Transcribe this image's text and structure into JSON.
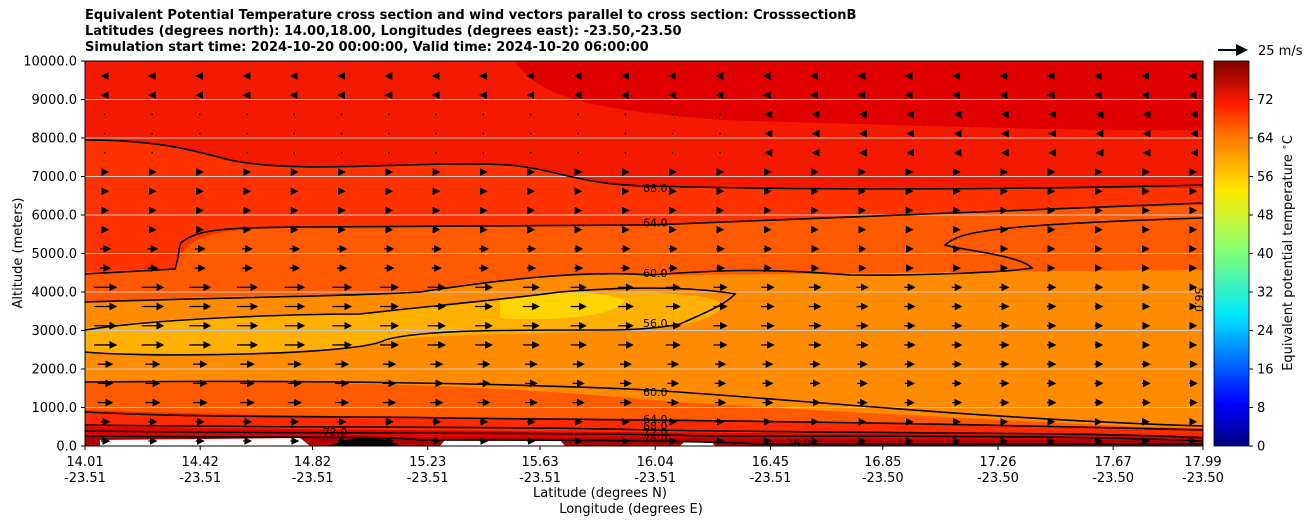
{
  "chart_data": {
    "type": "contour",
    "title_lines": [
      "Equivalent Potential Temperature cross section and wind vectors parallel to cross section: CrosssectionB",
      "Latitudes (degrees north): 14.00,18.00, Longitudes (degrees east): -23.50,-23.50",
      "Simulation start time: 2024-10-20 00:00:00, Valid time: 2024-10-20 06:00:00"
    ],
    "xlabel_lat": "Latitude (degrees N)",
    "xlabel_lon": "Longitude (degrees E)",
    "ylabel": "Altitude (meters)",
    "x_ticks_lat": [
      "14.01",
      "14.42",
      "14.82",
      "15.23",
      "15.63",
      "16.04",
      "16.45",
      "16.85",
      "17.26",
      "17.67",
      "17.99"
    ],
    "x_ticks_lon": [
      "-23.51",
      "-23.51",
      "-23.51",
      "-23.51",
      "-23.51",
      "-23.51",
      "-23.51",
      "-23.50",
      "-23.50",
      "-23.50",
      "-23.50"
    ],
    "y_ticks": [
      "0.0",
      "1000.0",
      "2000.0",
      "3000.0",
      "4000.0",
      "5000.0",
      "6000.0",
      "7000.0",
      "8000.0",
      "9000.0",
      "10000.0"
    ],
    "ylim": [
      0,
      10000
    ],
    "grid": "horizontal",
    "colorbar": {
      "label": "Equivalent potential temperature $^\\circ$C",
      "ticks": [
        "0",
        "8",
        "16",
        "24",
        "32",
        "40",
        "48",
        "56",
        "64",
        "72"
      ],
      "range": [
        0,
        80
      ],
      "colormap": "jet"
    },
    "wind_key": "25 m/s",
    "contour_labels": [
      {
        "text": "68.0",
        "lat": 16.04,
        "alt": 6700
      },
      {
        "text": "64.0",
        "lat": 16.04,
        "alt": 5800
      },
      {
        "text": "60.0",
        "lat": 16.04,
        "alt": 4500
      },
      {
        "text": "56.0",
        "lat": 16.04,
        "alt": 3200
      },
      {
        "text": "60.0",
        "lat": 16.04,
        "alt": 1400
      },
      {
        "text": "64.0",
        "lat": 16.04,
        "alt": 700
      },
      {
        "text": "68.0",
        "lat": 16.04,
        "alt": 520
      },
      {
        "text": "72.0",
        "lat": 16.04,
        "alt": 360
      },
      {
        "text": "76.0",
        "lat": 16.04,
        "alt": 200
      },
      {
        "text": "72.0",
        "lat": 14.9,
        "alt": 360
      },
      {
        "text": "76.0",
        "lat": 16.55,
        "alt": 80
      },
      {
        "text": "56.0",
        "lat": 17.99,
        "alt": 3800
      }
    ]
  }
}
